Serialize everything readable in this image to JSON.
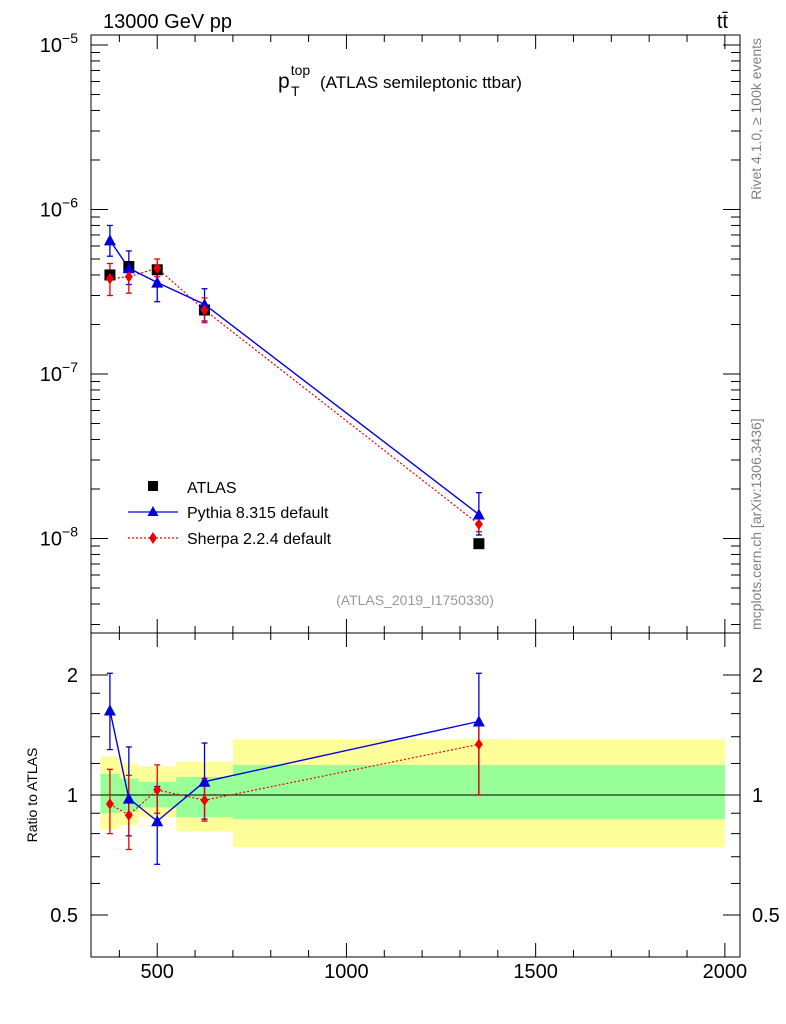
{
  "header": {
    "energy_label": "13000 GeV pp",
    "process_label": "tt̄"
  },
  "side_labels": {
    "rivet": "Rivet 4.1.0, ≥ 100k events",
    "site": "mcplots.cern.ch [arXiv:1306.3436]"
  },
  "colors": {
    "atlas": "#000000",
    "pythia": "#0000dd",
    "sherpa": "#ee0000",
    "band_inner": "#99ff99",
    "band_outer": "#ffff99",
    "analysis_label": "#999999"
  },
  "chart_data": [
    {
      "id": "main",
      "type": "scatter",
      "title_base": "p",
      "title_sup": "top",
      "title_sub": "T",
      "title_rest": "(ATLAS semileptonic ttbar)",
      "analysis_label": "(ATLAS_2019_I1750330)",
      "yscale": "log",
      "ylim": [
        3e-09,
        1e-05
      ],
      "xlim": [
        325,
        2040
      ],
      "y_tick_labels": [
        {
          "base": "10",
          "exp": "−5",
          "value": 1e-05
        },
        {
          "base": "10",
          "exp": "−6",
          "value": 1e-06
        },
        {
          "base": "10",
          "exp": "−7",
          "value": 1e-07
        },
        {
          "base": "10",
          "exp": "−8",
          "value": 1e-08
        }
      ],
      "legend": [
        {
          "label": "ATLAS",
          "marker": "square"
        },
        {
          "label": "Pythia 8.315 default",
          "marker": "triangle"
        },
        {
          "label": "Sherpa 2.2.4 default",
          "marker": "diamond"
        }
      ],
      "series": [
        {
          "name": "ATLAS",
          "x": [
            375,
            425,
            500,
            625,
            1350
          ],
          "y": [
            4e-07,
            4.5e-07,
            4.3e-07,
            2.45e-07,
            9.3e-09
          ]
        },
        {
          "name": "Pythia 8.315 default",
          "x": [
            375,
            425,
            500,
            625,
            1350
          ],
          "y": [
            6.5e-07,
            4.4e-07,
            3.6e-07,
            2.65e-07,
            1.4e-08
          ],
          "err_lo": [
            5.2e-07,
            3.5e-07,
            2.75e-07,
            2.1e-07,
            1.05e-08
          ],
          "err_hi": [
            8e-07,
            5.6e-07,
            4.5e-07,
            3.3e-07,
            1.9e-08
          ]
        },
        {
          "name": "Sherpa 2.2.4 default",
          "x": [
            375,
            425,
            500,
            625,
            1350
          ],
          "y": [
            3.8e-07,
            3.9e-07,
            4.4e-07,
            2.45e-07,
            1.22e-08
          ],
          "err_lo": [
            3e-07,
            3.1e-07,
            3.9e-07,
            2.05e-07,
            1.1e-08
          ],
          "err_hi": [
            4.7e-07,
            4.7e-07,
            5e-07,
            2.9e-07,
            1.35e-08
          ]
        }
      ]
    },
    {
      "id": "ratio",
      "type": "scatter",
      "ylabel": "Ratio to ATLAS",
      "yscale": "log",
      "ylim": [
        0.4,
        2.3
      ],
      "xlim": [
        325,
        2040
      ],
      "y_ticks": [
        0.5,
        1,
        2
      ],
      "y_tick_labels": [
        "0.5",
        "1",
        "2"
      ],
      "x_ticks": [
        500,
        1000,
        1500,
        2000
      ],
      "x_tick_labels": [
        "500",
        "1000",
        "1500",
        "2000"
      ],
      "bands": [
        {
          "x0": 350,
          "x1": 400,
          "inner": [
            0.9,
            1.13
          ],
          "outer": [
            0.82,
            1.25
          ]
        },
        {
          "x0": 400,
          "x1": 450,
          "inner": [
            0.91,
            1.1
          ],
          "outer": [
            0.84,
            1.2
          ]
        },
        {
          "x0": 450,
          "x1": 550,
          "inner": [
            0.93,
            1.08
          ],
          "outer": [
            0.88,
            1.18
          ]
        },
        {
          "x0": 550,
          "x1": 700,
          "inner": [
            0.88,
            1.11
          ],
          "outer": [
            0.81,
            1.21
          ]
        },
        {
          "x0": 700,
          "x1": 2000,
          "inner": [
            0.87,
            1.19
          ],
          "outer": [
            0.74,
            1.38
          ]
        }
      ],
      "series": [
        {
          "name": "Pythia 8.315 default",
          "x": [
            375,
            425,
            500,
            625,
            1350
          ],
          "y": [
            1.63,
            0.98,
            0.86,
            1.08,
            1.53
          ],
          "err_lo": [
            1.3,
            0.79,
            0.67,
            0.87,
            1.0
          ],
          "err_hi": [
            2.02,
            1.32,
            1.05,
            1.35,
            2.02
          ]
        },
        {
          "name": "Sherpa 2.2.4 default",
          "x": [
            375,
            425,
            500,
            625,
            1350
          ],
          "y": [
            0.95,
            0.89,
            1.03,
            0.97,
            1.34
          ],
          "err_lo": [
            0.8,
            0.73,
            0.9,
            0.86,
            1.0
          ],
          "err_hi": [
            1.16,
            1.12,
            1.19,
            1.1,
            1.51
          ]
        }
      ]
    }
  ]
}
